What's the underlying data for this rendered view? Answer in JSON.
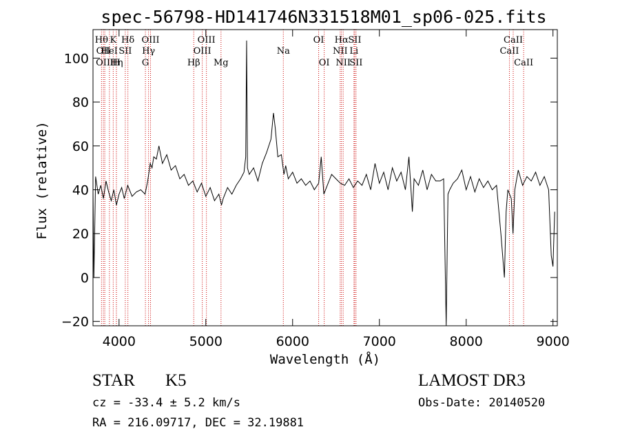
{
  "chart_data": {
    "type": "line",
    "title": "spec-56798-HD141746N331518M01_sp06-025.fits",
    "xlabel": "Wavelength (Å)",
    "ylabel": "Flux (relative)",
    "xlim": [
      3700,
      9050
    ],
    "ylim": [
      -22,
      113
    ],
    "x_ticks": [
      4000,
      5000,
      6000,
      7000,
      8000,
      9000
    ],
    "y_ticks": [
      -20,
      0,
      20,
      40,
      60,
      80,
      100
    ],
    "grid": false,
    "series": [
      {
        "x": [
          3700,
          3710,
          3730,
          3760,
          3790,
          3820,
          3850,
          3880,
          3910,
          3940,
          3970,
          4000,
          4030,
          4060,
          4100,
          4150,
          4200,
          4250,
          4300,
          4330,
          4360,
          4380,
          4400,
          4430,
          4460,
          4500,
          4550,
          4600,
          4650,
          4700,
          4750,
          4800,
          4850,
          4900,
          4950,
          5000,
          5050,
          5100,
          5150,
          5180,
          5200,
          5250,
          5300,
          5350,
          5400,
          5440,
          5460,
          5470,
          5480,
          5500,
          5550,
          5600,
          5650,
          5700,
          5750,
          5780,
          5800,
          5830,
          5870,
          5900,
          5920,
          5950,
          6000,
          6050,
          6100,
          6150,
          6200,
          6250,
          6300,
          6330,
          6360,
          6400,
          6450,
          6500,
          6550,
          6600,
          6650,
          6700,
          6750,
          6800,
          6850,
          6900,
          6950,
          7000,
          7050,
          7100,
          7150,
          7200,
          7250,
          7300,
          7340,
          7380,
          7400,
          7450,
          7500,
          7550,
          7600,
          7650,
          7700,
          7740,
          7760,
          7770,
          7790,
          7810,
          7850,
          7900,
          7950,
          8000,
          8050,
          8100,
          8150,
          8200,
          8250,
          8300,
          8350,
          8400,
          8440,
          8460,
          8480,
          8500,
          8520,
          8540,
          8560,
          8600,
          8650,
          8700,
          8750,
          8800,
          8850,
          8900,
          8950,
          8980,
          9000,
          9020
        ],
        "y": [
          40,
          0,
          46,
          38,
          42,
          36,
          44,
          39,
          35,
          40,
          33,
          38,
          41,
          36,
          42,
          37,
          39,
          40,
          38,
          44,
          52,
          50,
          55,
          54,
          60,
          52,
          56,
          49,
          51,
          45,
          47,
          42,
          44,
          39,
          43,
          37,
          41,
          35,
          38,
          33,
          36,
          41,
          38,
          42,
          45,
          48,
          55,
          108,
          50,
          47,
          50,
          44,
          52,
          57,
          63,
          75,
          68,
          55,
          56,
          47,
          51,
          45,
          48,
          43,
          45,
          42,
          44,
          40,
          43,
          55,
          38,
          42,
          47,
          45,
          43,
          42,
          45,
          41,
          44,
          42,
          47,
          40,
          52,
          43,
          48,
          40,
          50,
          44,
          48,
          40,
          55,
          30,
          45,
          42,
          49,
          40,
          47,
          44,
          44,
          45,
          0,
          -22,
          38,
          40,
          43,
          45,
          49,
          40,
          46,
          39,
          45,
          41,
          44,
          40,
          42,
          20,
          0,
          30,
          40,
          38,
          36,
          20,
          40,
          49,
          42,
          46,
          44,
          48,
          42,
          46,
          40,
          10,
          5,
          30
        ]
      }
    ],
    "annotation_lines": [
      {
        "wavelength": 3798,
        "label": "Hθ",
        "row": 1
      },
      {
        "wavelength": 3820,
        "label": "OII",
        "row": 2
      },
      {
        "wavelength": 3836,
        "label": "OIII",
        "row": 3
      },
      {
        "wavelength": 3889,
        "label": "HeI",
        "row": 2
      },
      {
        "wavelength": 3933,
        "label": "K",
        "row": 1
      },
      {
        "wavelength": 3969,
        "label": "H",
        "row": 3
      },
      {
        "wavelength": 3970,
        "label": "Hη",
        "row": 3
      },
      {
        "wavelength": 4072,
        "label": "SII",
        "row": 2
      },
      {
        "wavelength": 4102,
        "label": "Hδ",
        "row": 1
      },
      {
        "wavelength": 4304,
        "label": "G",
        "row": 3
      },
      {
        "wavelength": 4340,
        "label": "Hγ",
        "row": 2
      },
      {
        "wavelength": 4363,
        "label": "OIII",
        "row": 1
      },
      {
        "wavelength": 4861,
        "label": "Hβ",
        "row": 3
      },
      {
        "wavelength": 4959,
        "label": "OIII",
        "row": 2
      },
      {
        "wavelength": 5007,
        "label": "OIII",
        "row": 1
      },
      {
        "wavelength": 5175,
        "label": "Mg",
        "row": 3
      },
      {
        "wavelength": 5893,
        "label": "Na",
        "row": 2
      },
      {
        "wavelength": 6300,
        "label": "OI",
        "row": 1
      },
      {
        "wavelength": 6364,
        "label": "OI",
        "row": 3
      },
      {
        "wavelength": 6548,
        "label": "NII",
        "row": 2
      },
      {
        "wavelength": 6563,
        "label": "Hα",
        "row": 1
      },
      {
        "wavelength": 6583,
        "label": "NII",
        "row": 3
      },
      {
        "wavelength": 6707,
        "label": "Li",
        "row": 2
      },
      {
        "wavelength": 6716,
        "label": "SII",
        "row": 1
      },
      {
        "wavelength": 6731,
        "label": "SII",
        "row": 3
      },
      {
        "wavelength": 8498,
        "label": "CaII",
        "row": 2
      },
      {
        "wavelength": 8542,
        "label": "CaII",
        "row": 1
      },
      {
        "wavelength": 8662,
        "label": "CaII",
        "row": 3
      }
    ]
  },
  "info": {
    "object_class": "STAR",
    "subclass": "K5",
    "survey": "LAMOST DR3",
    "redshift": "cz = -33.4 ± 5.2 km/s",
    "obs_date": "Obs-Date: 20140520",
    "coords": "RA = 216.09717, DEC =  32.19881"
  },
  "colors": {
    "spectrum": "#000000",
    "line_markers": "#cc0000"
  }
}
